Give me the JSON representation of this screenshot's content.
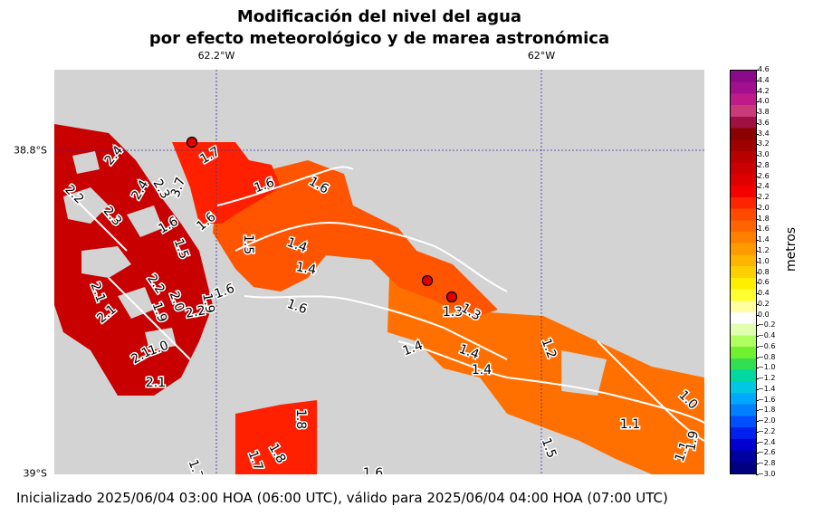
{
  "title_line1": "Modificación del nivel del agua",
  "title_line2": "por efecto meteorológico y de marea astronómica",
  "lon_labels": [
    "62.2°W",
    "62°W"
  ],
  "lat_labels": [
    "38.8°S",
    "39°S"
  ],
  "colorbar": {
    "label": "metros",
    "ticks": [
      "4.6",
      "4.4",
      "4.2",
      "4.0",
      "3.8",
      "3.6",
      "3.4",
      "3.2",
      "3.0",
      "2.8",
      "2.6",
      "2.4",
      "2.2",
      "2.0",
      "1.8",
      "1.6",
      "1.4",
      "1.2",
      "1.0",
      "0.8",
      "0.6",
      "0.4",
      "0.2",
      "0.0",
      "−0.2",
      "−0.4",
      "−0.6",
      "−0.8",
      "−1.0",
      "−1.2",
      "−1.4",
      "−1.6",
      "−1.8",
      "−2.0",
      "−2.2",
      "−2.4",
      "−2.6",
      "−2.8",
      "−3.0"
    ],
    "colors": [
      "#8b0a8b",
      "#a21090",
      "#c01a8a",
      "#c83a7a",
      "#a01040",
      "#8b0000",
      "#a00000",
      "#b80000",
      "#cc0000",
      "#e00000",
      "#f50000",
      "#ff2400",
      "#ff4800",
      "#ff6400",
      "#ff8000",
      "#ff9a00",
      "#ffb400",
      "#ffd000",
      "#ffee00",
      "#ffff30",
      "#ffffa0",
      "#ffffff",
      "#e0ffb0",
      "#b0ff60",
      "#70f030",
      "#30e050",
      "#00d8a0",
      "#00c8e0",
      "#00a8ff",
      "#0080ff",
      "#0050ff",
      "#0020f0",
      "#0000d0",
      "#0000a0",
      "#000080"
    ]
  },
  "contour_labels": [
    "2.4",
    "2.2",
    "2.4",
    "2.3",
    "3.7",
    "2.3",
    "1.6",
    "1.6",
    "1.7",
    "1.6",
    "1.6",
    "1.5",
    "1.4",
    "1.4",
    "1.5",
    "2.1",
    "2.1",
    "2.2",
    "2.0",
    "1.9",
    "2.2",
    "1.9",
    "1.6",
    "1.6",
    "2.1",
    "1.0",
    "2.1",
    "1.3",
    "1.3",
    "1.4",
    "1.4",
    "1.4",
    "1.2",
    "1.0",
    "1.1",
    "1.1",
    "1.9",
    "1.5",
    "1.8",
    "1.8",
    "1.7",
    "1.7",
    "1.6"
  ],
  "stations": 3,
  "footer": "Inicializado 2025/06/04 03:00 HOA (06:00 UTC), válido para 2025/06/04 04:00 HOA (07:00 UTC)"
}
